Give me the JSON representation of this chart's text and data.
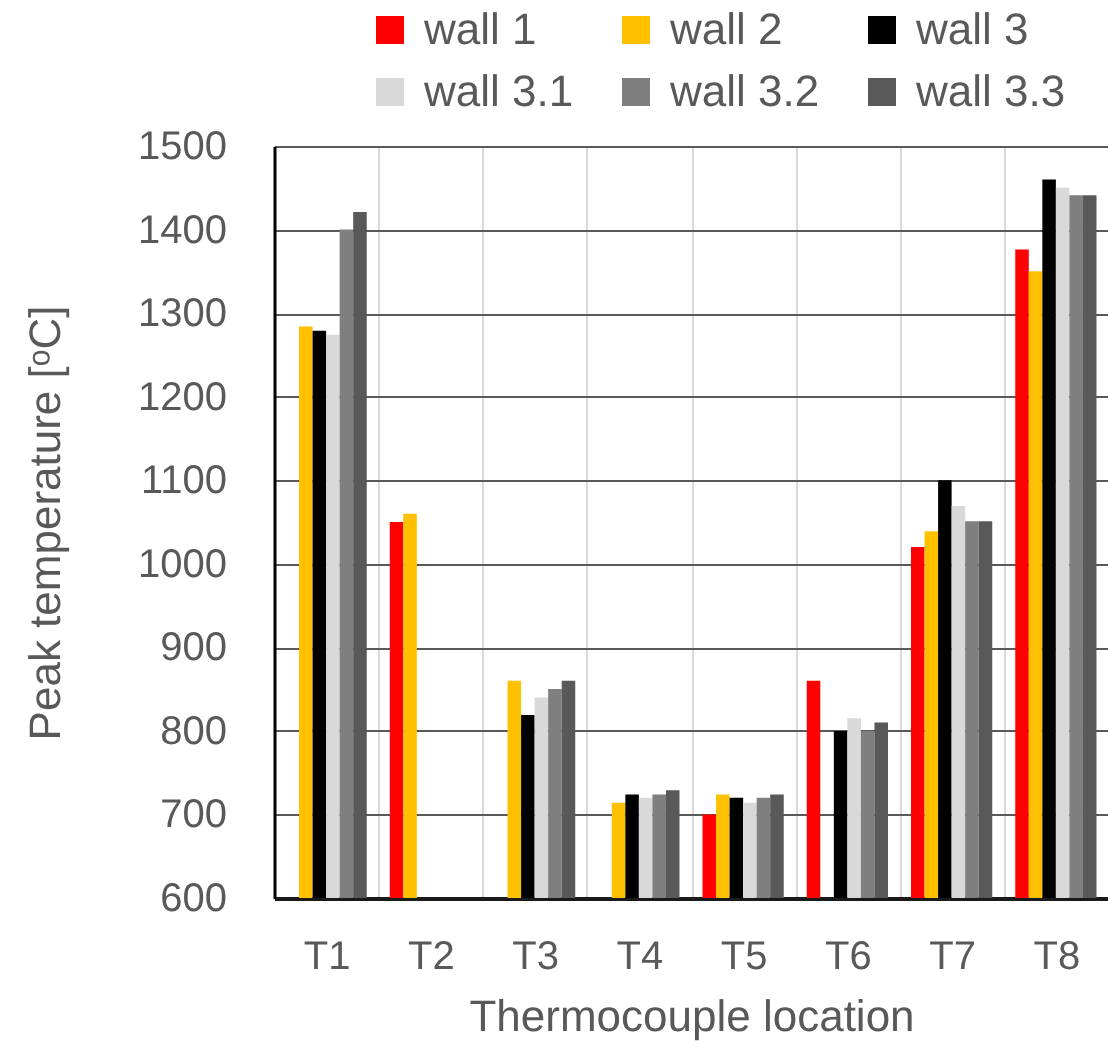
{
  "chart_data": {
    "type": "bar",
    "xlabel": "Thermocouple location",
    "ylabel": "Peak temperature [ᵒC]",
    "categories": [
      "T1",
      "T2",
      "T3",
      "T4",
      "T5",
      "T6",
      "T7",
      "T8"
    ],
    "series": [
      {
        "name": "wall 1",
        "color": "#ff0000",
        "values": [
          null,
          1050,
          null,
          null,
          700,
          860,
          1020,
          1376
        ]
      },
      {
        "name": "wall 2",
        "color": "#ffc000",
        "values": [
          1284,
          1060,
          860,
          714,
          724,
          null,
          1039,
          1350
        ]
      },
      {
        "name": "wall 3",
        "color": "#000000",
        "values": [
          1279,
          null,
          819,
          724,
          720,
          800,
          1100,
          1460
        ]
      },
      {
        "name": "wall 3.1",
        "color": "#d9d9d9",
        "values": [
          1274,
          null,
          840,
          720,
          714,
          815,
          1069,
          1450
        ]
      },
      {
        "name": "wall 3.2",
        "color": "#7f7f7f",
        "values": [
          1400,
          null,
          850,
          724,
          720,
          800,
          1051,
          1441
        ]
      },
      {
        "name": "wall 3.3",
        "color": "#595959",
        "values": [
          1421,
          null,
          860,
          729,
          724,
          810,
          1051,
          1441
        ]
      }
    ],
    "ylim": [
      600,
      1500
    ],
    "yticks": [
      600,
      700,
      800,
      900,
      1000,
      1100,
      1200,
      1300,
      1400,
      1500
    ],
    "grid": true,
    "legend": "top"
  }
}
